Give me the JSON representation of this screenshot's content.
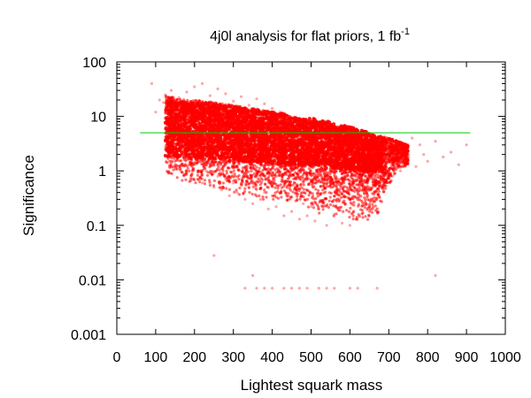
{
  "chart_data": {
    "type": "scatter",
    "title": "4j0l analysis for flat priors, 1 fb",
    "title_superscript": "-1",
    "xlabel": "Lightest squark mass",
    "ylabel": "Significance",
    "xlim": [
      0,
      1000
    ],
    "ylim": [
      0.001,
      100
    ],
    "y_scale": "log",
    "grid": false,
    "legend": "none",
    "x_ticks": [
      0,
      100,
      200,
      300,
      400,
      500,
      600,
      700,
      800,
      900,
      1000
    ],
    "x_tick_labels": [
      "0",
      "100",
      "200",
      "300",
      "400",
      "500",
      "600",
      "700",
      "800",
      "900",
      "1000"
    ],
    "y_ticks": [
      0.001,
      0.01,
      0.1,
      1,
      10,
      100
    ],
    "y_tick_labels": [
      "0.001",
      "0.01",
      "0.1",
      "1",
      "10",
      "100"
    ],
    "reference_line": {
      "y": 5,
      "x_range": [
        60,
        910
      ],
      "color": "#00cc00"
    },
    "series": [
      {
        "color": "#ff0000",
        "points": [
          [
            90,
            40
          ],
          [
            100,
            12
          ],
          [
            110,
            20
          ],
          [
            120,
            18
          ],
          [
            125,
            25
          ],
          [
            130,
            8
          ],
          [
            140,
            30
          ],
          [
            150,
            15
          ],
          [
            160,
            22
          ],
          [
            170,
            6
          ],
          [
            180,
            28
          ],
          [
            190,
            14
          ],
          [
            200,
            35
          ],
          [
            210,
            9
          ],
          [
            220,
            40
          ],
          [
            230,
            11
          ],
          [
            240,
            24
          ],
          [
            250,
            7
          ],
          [
            260,
            32
          ],
          [
            270,
            13
          ],
          [
            280,
            26
          ],
          [
            290,
            5
          ],
          [
            300,
            19
          ],
          [
            310,
            10
          ],
          [
            320,
            23
          ],
          [
            330,
            4
          ],
          [
            340,
            16
          ],
          [
            350,
            8
          ],
          [
            360,
            21
          ],
          [
            370,
            6
          ],
          [
            380,
            17
          ],
          [
            390,
            3
          ],
          [
            400,
            14
          ],
          [
            410,
            5
          ],
          [
            420,
            12
          ],
          [
            430,
            2.5
          ],
          [
            440,
            10
          ],
          [
            450,
            4
          ],
          [
            460,
            9
          ],
          [
            470,
            2
          ],
          [
            480,
            8
          ],
          [
            490,
            3
          ],
          [
            500,
            7
          ],
          [
            510,
            1.8
          ],
          [
            520,
            6
          ],
          [
            530,
            2.5
          ],
          [
            540,
            5
          ],
          [
            550,
            1.5
          ],
          [
            560,
            4.5
          ],
          [
            570,
            2
          ],
          [
            580,
            4
          ],
          [
            590,
            1.2
          ],
          [
            600,
            3.5
          ],
          [
            610,
            1.6
          ],
          [
            620,
            3
          ],
          [
            630,
            1
          ],
          [
            640,
            2.5
          ],
          [
            650,
            1.3
          ],
          [
            660,
            2.2
          ],
          [
            670,
            0.9
          ],
          [
            680,
            2
          ],
          [
            690,
            1.1
          ],
          [
            700,
            1.8
          ],
          [
            710,
            0.8
          ],
          [
            720,
            1.5
          ],
          [
            730,
            1
          ],
          [
            740,
            2.8
          ],
          [
            750,
            1.4
          ],
          [
            760,
            4
          ],
          [
            770,
            1.2
          ],
          [
            780,
            3
          ],
          [
            790,
            2
          ],
          [
            800,
            1.5
          ],
          [
            820,
            3.5
          ],
          [
            840,
            1.8
          ],
          [
            860,
            2.2
          ],
          [
            880,
            1.3
          ],
          [
            900,
            3
          ],
          [
            140,
            1.5
          ],
          [
            160,
            1.2
          ],
          [
            180,
            0.9
          ],
          [
            200,
            1.3
          ],
          [
            210,
            0.7
          ],
          [
            220,
            0.6
          ],
          [
            230,
            1
          ],
          [
            250,
            0.5
          ],
          [
            260,
            0.8
          ],
          [
            270,
            0.45
          ],
          [
            280,
            0.7
          ],
          [
            290,
            0.35
          ],
          [
            300,
            0.6
          ],
          [
            310,
            0.4
          ],
          [
            320,
            0.55
          ],
          [
            330,
            0.3
          ],
          [
            340,
            0.5
          ],
          [
            350,
            0.25
          ],
          [
            360,
            0.45
          ],
          [
            370,
            0.3
          ],
          [
            380,
            0.4
          ],
          [
            390,
            0.2
          ],
          [
            400,
            0.35
          ],
          [
            410,
            0.22
          ],
          [
            420,
            0.4
          ],
          [
            430,
            0.15
          ],
          [
            440,
            0.3
          ],
          [
            450,
            0.18
          ],
          [
            460,
            0.28
          ],
          [
            470,
            0.13
          ],
          [
            480,
            0.25
          ],
          [
            490,
            0.15
          ],
          [
            500,
            0.22
          ],
          [
            510,
            0.12
          ],
          [
            520,
            0.2
          ],
          [
            540,
            0.1
          ],
          [
            560,
            0.16
          ],
          [
            580,
            0.11
          ],
          [
            600,
            0.1
          ],
          [
            250,
            0.028
          ],
          [
            330,
            0.007
          ],
          [
            350,
            0.012
          ],
          [
            360,
            0.007
          ],
          [
            380,
            0.007
          ],
          [
            400,
            0.007
          ],
          [
            430,
            0.007
          ],
          [
            450,
            0.007
          ],
          [
            470,
            0.007
          ],
          [
            490,
            0.007
          ],
          [
            520,
            0.007
          ],
          [
            540,
            0.007
          ],
          [
            560,
            0.007
          ],
          [
            600,
            0.007
          ],
          [
            620,
            0.007
          ],
          [
            670,
            0.007
          ],
          [
            820,
            0.012
          ]
        ],
        "dense_band": [
          [
            125,
            0.8,
            24
          ],
          [
            150,
            0.7,
            22
          ],
          [
            175,
            0.6,
            20
          ],
          [
            200,
            0.55,
            20
          ],
          [
            225,
            0.5,
            19
          ],
          [
            250,
            0.45,
            18
          ],
          [
            275,
            0.4,
            17
          ],
          [
            300,
            0.35,
            16
          ],
          [
            325,
            0.33,
            15
          ],
          [
            350,
            0.3,
            14
          ],
          [
            375,
            0.28,
            13
          ],
          [
            400,
            0.25,
            12
          ],
          [
            425,
            0.23,
            11
          ],
          [
            450,
            0.22,
            10
          ],
          [
            475,
            0.2,
            9
          ],
          [
            500,
            0.18,
            8.5
          ],
          [
            525,
            0.16,
            8
          ],
          [
            550,
            0.14,
            7
          ],
          [
            575,
            0.13,
            6.5
          ],
          [
            600,
            0.12,
            6
          ],
          [
            625,
            0.12,
            5.5
          ],
          [
            650,
            0.12,
            5
          ],
          [
            675,
            0.15,
            4.5
          ],
          [
            700,
            0.5,
            4
          ],
          [
            725,
            1,
            3.5
          ],
          [
            750,
            1.2,
            3
          ]
        ]
      }
    ]
  }
}
